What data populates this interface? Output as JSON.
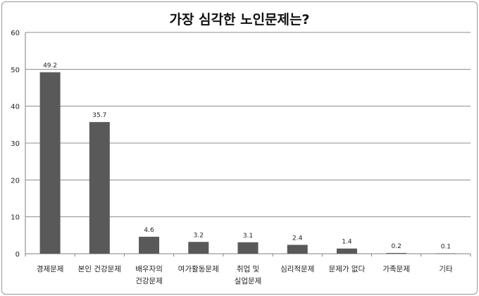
{
  "chart_data": {
    "type": "bar",
    "title": "가장 심각한 노인문제는?",
    "xlabel": "",
    "ylabel": "",
    "categories": [
      [
        "경제문제"
      ],
      [
        "본인 건강문제"
      ],
      [
        "배우자의",
        "건강문제"
      ],
      [
        "여가활동문제"
      ],
      [
        "취업 및",
        "실업문제"
      ],
      [
        "심리적문제"
      ],
      [
        "문제가 없다"
      ],
      [
        "가족문제"
      ],
      [
        "기타"
      ]
    ],
    "values": [
      49.2,
      35.7,
      4.6,
      3.2,
      3.1,
      2.4,
      1.4,
      0.2,
      0.1
    ],
    "value_labels": [
      "49.2",
      "35.7",
      "4.6",
      "3.2",
      "3.1",
      "2.4",
      "1.4",
      "0.2",
      "0.1"
    ],
    "ylim": [
      0,
      60
    ],
    "yticks": [
      0,
      10,
      20,
      30,
      40,
      50,
      60
    ],
    "grid": true,
    "legend": "none",
    "bar_color": "#595959",
    "grid_color": "#8c8c8c"
  }
}
